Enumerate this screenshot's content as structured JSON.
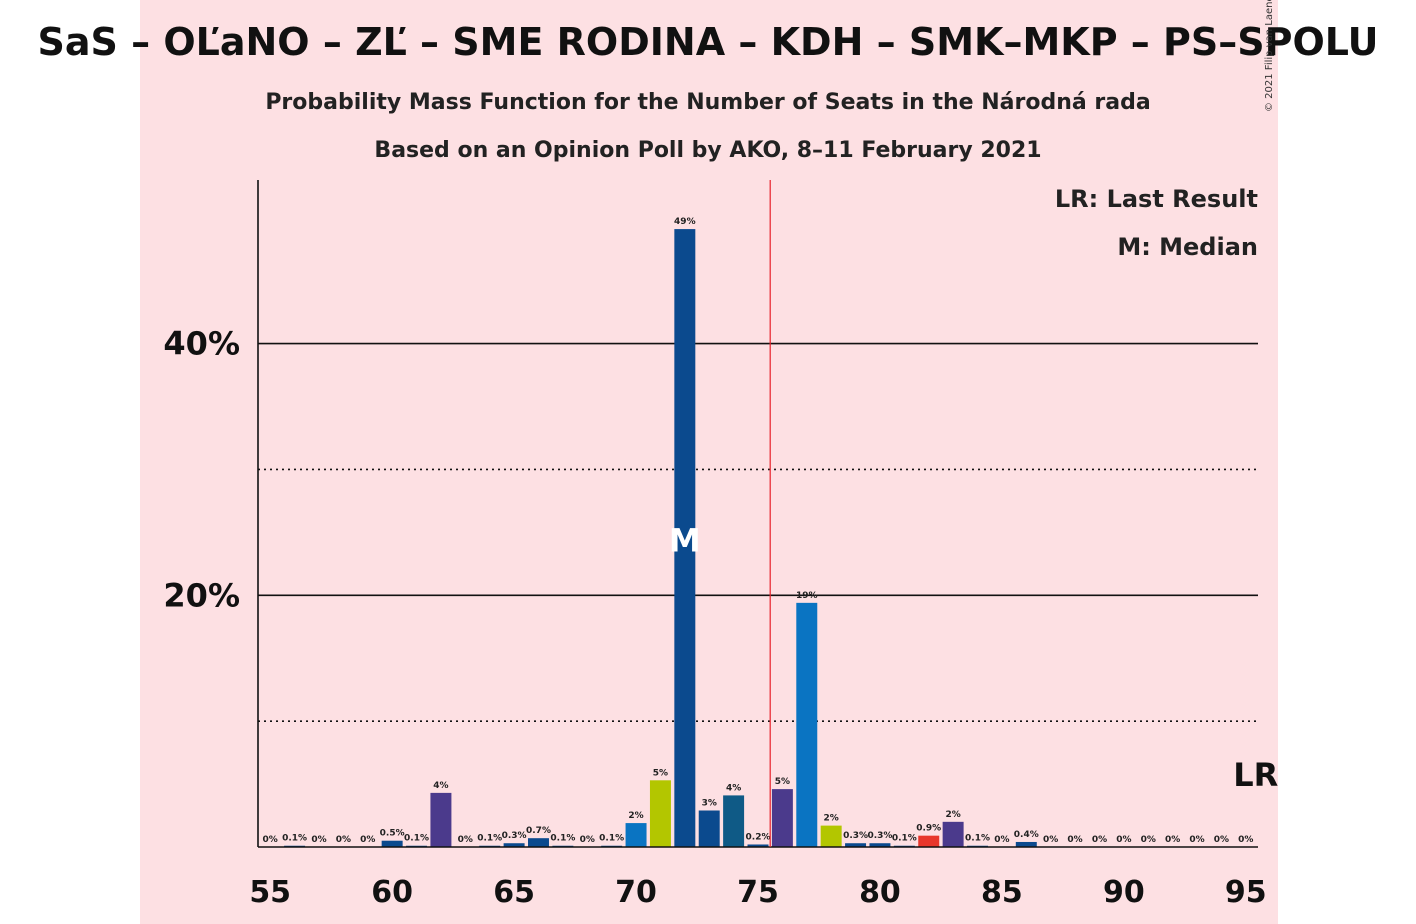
{
  "header": {
    "title": "SaS – OĽaNO – ZĽ – SME RODINA – KDH – SMK–MKP – PS–SPOLU",
    "subtitle_1": "Probability Mass Function for the Number of Seats in the Národná rada",
    "subtitle_2": "Based on an Opinion Poll by AKO, 8–11 February 2021",
    "copyright": "© 2021 Filip van Laenen"
  },
  "legend": {
    "last_result": "LR: Last Result",
    "median": "M: Median"
  },
  "markers": {
    "median_label": "M",
    "last_result_label": "LR"
  },
  "colors": {
    "background": "#fde0e3",
    "majority_line": "#e8212a",
    "bar_palette": [
      "#0b4a8e",
      "#0a74c2",
      "#4b3a8c",
      "#b3c600",
      "#e8362b",
      "#0f5a86"
    ]
  },
  "chart_data": {
    "type": "bar",
    "x": [
      55,
      56,
      57,
      58,
      59,
      60,
      61,
      62,
      63,
      64,
      65,
      66,
      67,
      68,
      69,
      70,
      71,
      72,
      73,
      74,
      75,
      76,
      77,
      78,
      79,
      80,
      81,
      82,
      83,
      84,
      85,
      86,
      87,
      88,
      89,
      90,
      91,
      92,
      93,
      94,
      95
    ],
    "values": [
      0,
      0.1,
      0,
      0,
      0,
      0.5,
      0.1,
      4.3,
      0,
      0.1,
      0.3,
      0.7,
      0.1,
      0,
      0.1,
      1.9,
      5.3,
      49.1,
      2.9,
      4.1,
      0.2,
      4.6,
      19.4,
      1.7,
      0.3,
      0.3,
      0.1,
      0.9,
      2.0,
      0.1,
      0,
      0.4,
      0,
      0,
      0,
      0,
      0,
      0,
      0,
      0,
      0
    ],
    "labels": [
      "0%",
      "0.1%",
      "0%",
      "0%",
      "0%",
      "0.5%",
      "0.1%",
      "4%",
      "0%",
      "0.1%",
      "0.3%",
      "0.7%",
      "0.1%",
      "0%",
      "0.1%",
      "2%",
      "5%",
      "49%",
      "3%",
      "4%",
      "0.2%",
      "5%",
      "19%",
      "2%",
      "0.3%",
      "0.3%",
      "0.1%",
      "0.9%",
      "2%",
      "0.1%",
      "0%",
      "0.4%",
      "0%",
      "0%",
      "0%",
      "0%",
      "0%",
      "0%",
      "0%",
      "0%",
      "0%"
    ],
    "bar_colors": [
      "#0b4a8e",
      "#0b4a8e",
      "#0b4a8e",
      "#0b4a8e",
      "#0b4a8e",
      "#0b4a8e",
      "#0b4a8e",
      "#4b3a8c",
      "#0b4a8e",
      "#0b4a8e",
      "#0b4a8e",
      "#0b4a8e",
      "#0b4a8e",
      "#0b4a8e",
      "#0b4a8e",
      "#0a74c2",
      "#b3c600",
      "#0b4a8e",
      "#0b4a8e",
      "#0f5a86",
      "#0b4a8e",
      "#4b3a8c",
      "#0a74c2",
      "#b3c600",
      "#0b4a8e",
      "#0b4a8e",
      "#0b4a8e",
      "#e8362b",
      "#4b3a8c",
      "#0b4a8e",
      "#0b4a8e",
      "#0b4a8e",
      "#0b4a8e",
      "#0b4a8e",
      "#0b4a8e",
      "#0b4a8e",
      "#0b4a8e",
      "#0b4a8e",
      "#0b4a8e",
      "#0b4a8e",
      "#0b4a8e"
    ],
    "x_ticks": [
      55,
      60,
      65,
      70,
      75,
      80,
      85,
      90,
      95
    ],
    "y_ticks_labeled": [
      {
        "value": 20,
        "label": "20%"
      },
      {
        "value": 40,
        "label": "40%"
      }
    ],
    "y_gridlines_dotted": [
      10,
      30
    ],
    "ylim": [
      0,
      53
    ],
    "xlim": [
      54.5,
      95.5
    ],
    "median": 72,
    "last_result": 95,
    "majority_threshold": 75.5
  }
}
